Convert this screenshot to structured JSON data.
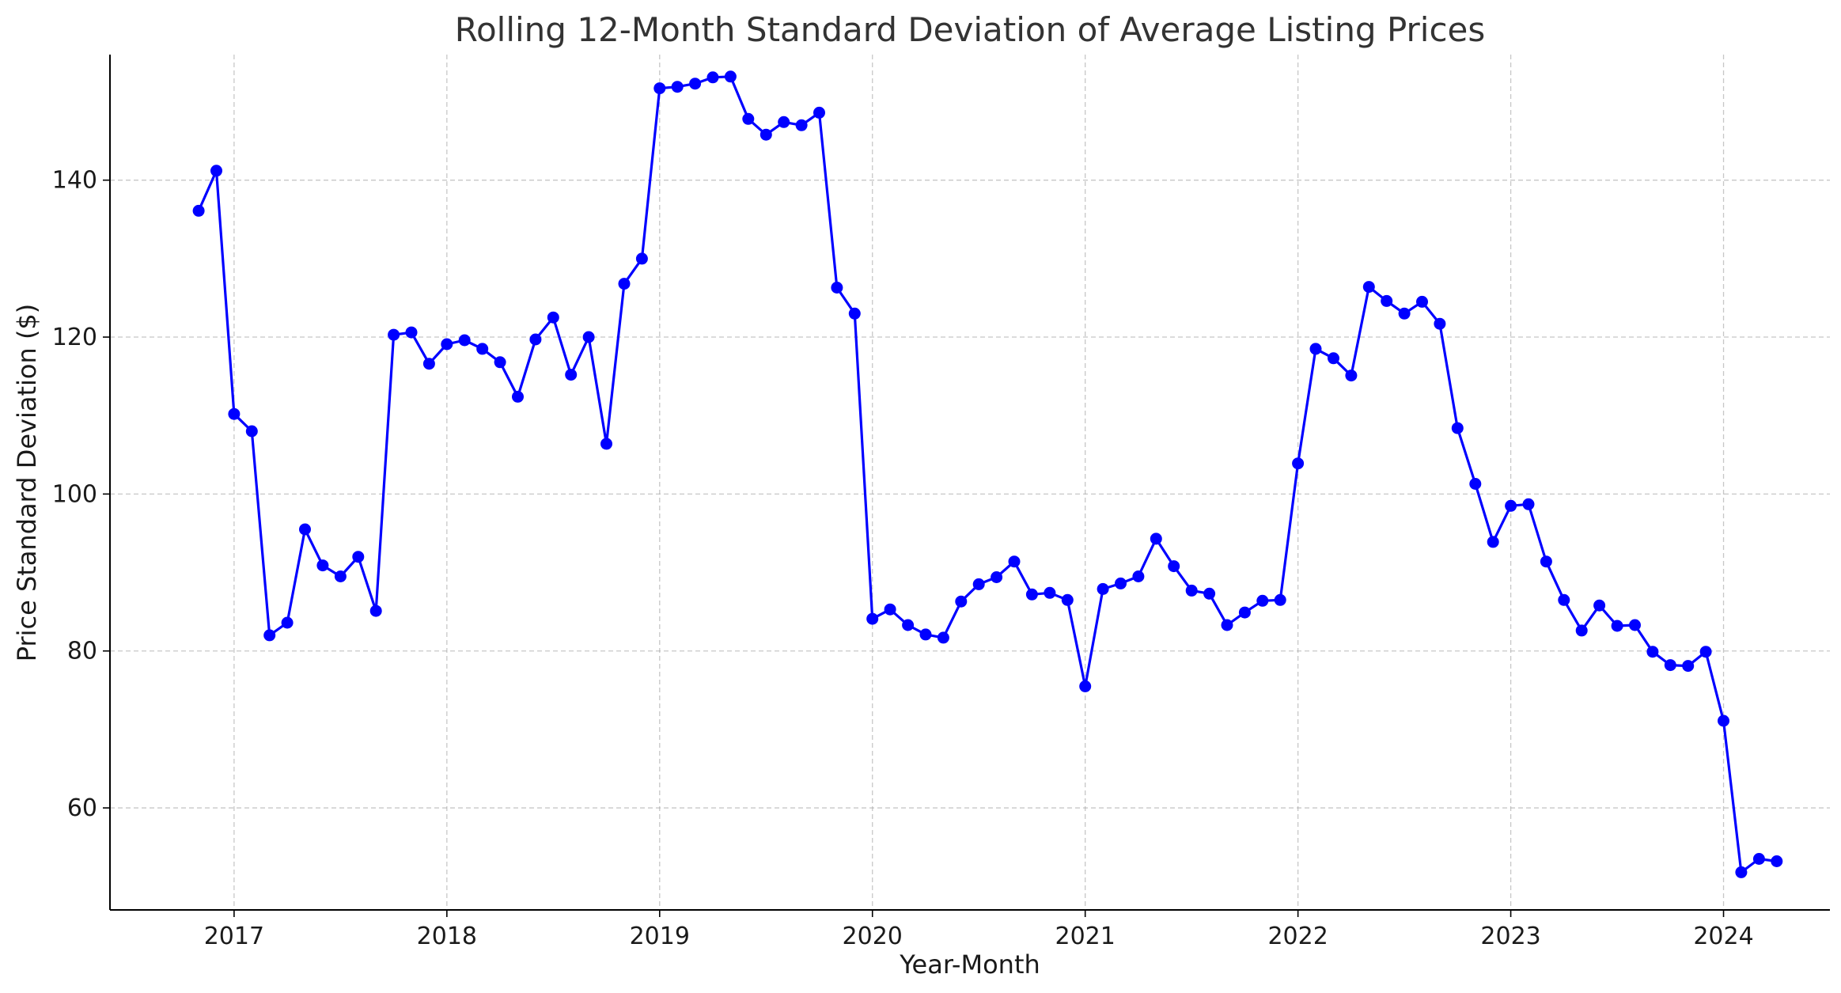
{
  "chart_data": {
    "type": "line",
    "title": "Rolling 12-Month Standard Deviation of Average Listing Prices",
    "xlabel": "Year-Month",
    "ylabel": "Price Standard Deviation ($)",
    "x_ticks": [
      "2017",
      "2018",
      "2019",
      "2020",
      "2021",
      "2022",
      "2023",
      "2024"
    ],
    "y_ticks": [
      60,
      80,
      100,
      120,
      140
    ],
    "xlim": [
      "2016-06",
      "2024-07"
    ],
    "ylim": [
      47,
      156
    ],
    "grid": true,
    "line_color": "#0000ff",
    "marker": "circle",
    "x": [
      "2016-11",
      "2016-12",
      "2017-01",
      "2017-02",
      "2017-03",
      "2017-04",
      "2017-05",
      "2017-06",
      "2017-07",
      "2017-08",
      "2017-09",
      "2017-10",
      "2017-11",
      "2017-12",
      "2018-01",
      "2018-02",
      "2018-03",
      "2018-04",
      "2018-05",
      "2018-06",
      "2018-07",
      "2018-08",
      "2018-09",
      "2018-10",
      "2018-11",
      "2018-12",
      "2019-01",
      "2019-02",
      "2019-03",
      "2019-04",
      "2019-05",
      "2019-06",
      "2019-07",
      "2019-08",
      "2019-09",
      "2019-10",
      "2019-11",
      "2019-12",
      "2020-01",
      "2020-02",
      "2020-03",
      "2020-04",
      "2020-05",
      "2020-06",
      "2020-07",
      "2020-08",
      "2020-09",
      "2020-10",
      "2020-11",
      "2020-12",
      "2021-01",
      "2021-02",
      "2021-03",
      "2021-04",
      "2021-05",
      "2021-06",
      "2021-07",
      "2021-08",
      "2021-09",
      "2021-10",
      "2021-11",
      "2021-12",
      "2022-01",
      "2022-02",
      "2022-03",
      "2022-04",
      "2022-05",
      "2022-06",
      "2022-07",
      "2022-08",
      "2022-09",
      "2022-10",
      "2022-11",
      "2022-12",
      "2023-01",
      "2023-02",
      "2023-03",
      "2023-04",
      "2023-05",
      "2023-06",
      "2023-07",
      "2023-08",
      "2023-09",
      "2023-10",
      "2023-11",
      "2023-12",
      "2024-01",
      "2024-02",
      "2024-03",
      "2024-04"
    ],
    "series": [
      {
        "values": [
          136.1,
          141.2,
          110.2,
          108.0,
          82.0,
          83.6,
          95.5,
          90.9,
          89.5,
          92.0,
          85.1,
          120.3,
          120.6,
          116.6,
          119.1,
          119.6,
          118.5,
          116.8,
          112.4,
          119.7,
          122.5,
          115.2,
          120.0,
          106.4,
          126.8,
          130.0,
          151.7,
          151.9,
          152.3,
          153.1,
          153.2,
          147.8,
          145.8,
          147.4,
          147.0,
          148.6,
          126.3,
          123.0,
          84.1,
          85.3,
          83.3,
          82.1,
          81.7,
          86.3,
          88.5,
          89.4,
          91.4,
          87.2,
          87.4,
          86.5,
          75.5,
          87.9,
          88.6,
          89.5,
          94.3,
          90.8,
          87.7,
          87.3,
          83.3,
          84.9,
          86.4,
          86.5,
          103.9,
          118.5,
          117.3,
          115.1,
          126.4,
          124.6,
          123.0,
          124.5,
          121.7,
          108.4,
          101.3,
          93.9,
          98.5,
          98.7,
          91.4,
          86.5,
          82.6,
          85.8,
          83.2,
          83.3,
          79.9,
          78.2,
          78.1,
          79.9,
          71.1,
          51.8,
          53.5,
          53.2
        ]
      }
    ]
  }
}
